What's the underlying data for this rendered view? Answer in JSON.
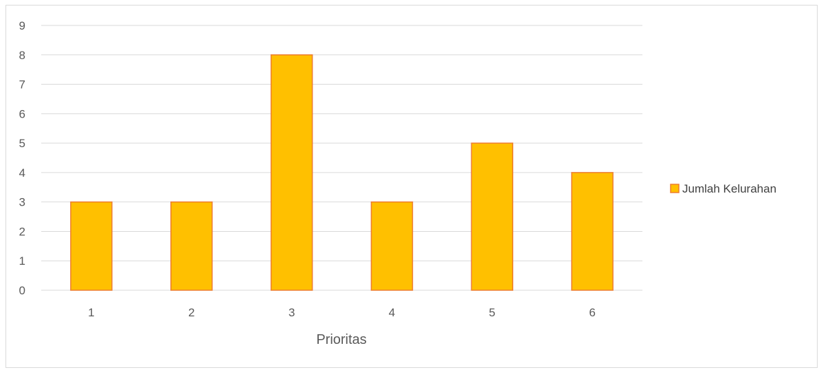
{
  "chart_data": {
    "type": "bar",
    "title": "",
    "xlabel": "Prioritas",
    "ylabel": "",
    "categories": [
      "1",
      "2",
      "3",
      "4",
      "5",
      "6"
    ],
    "series": [
      {
        "name": "Jumlah Kelurahan",
        "values": [
          3,
          3,
          8,
          3,
          5,
          4
        ]
      }
    ],
    "ylim": [
      0,
      9
    ],
    "yticks": [
      "0",
      "1",
      "2",
      "3",
      "4",
      "5",
      "6",
      "7",
      "8",
      "9"
    ],
    "grid": true,
    "legend_position": "right",
    "colors": {
      "bar_fill": "#FFC000",
      "bar_stroke": "#ED7D31",
      "grid": "#d9d9d9"
    }
  }
}
